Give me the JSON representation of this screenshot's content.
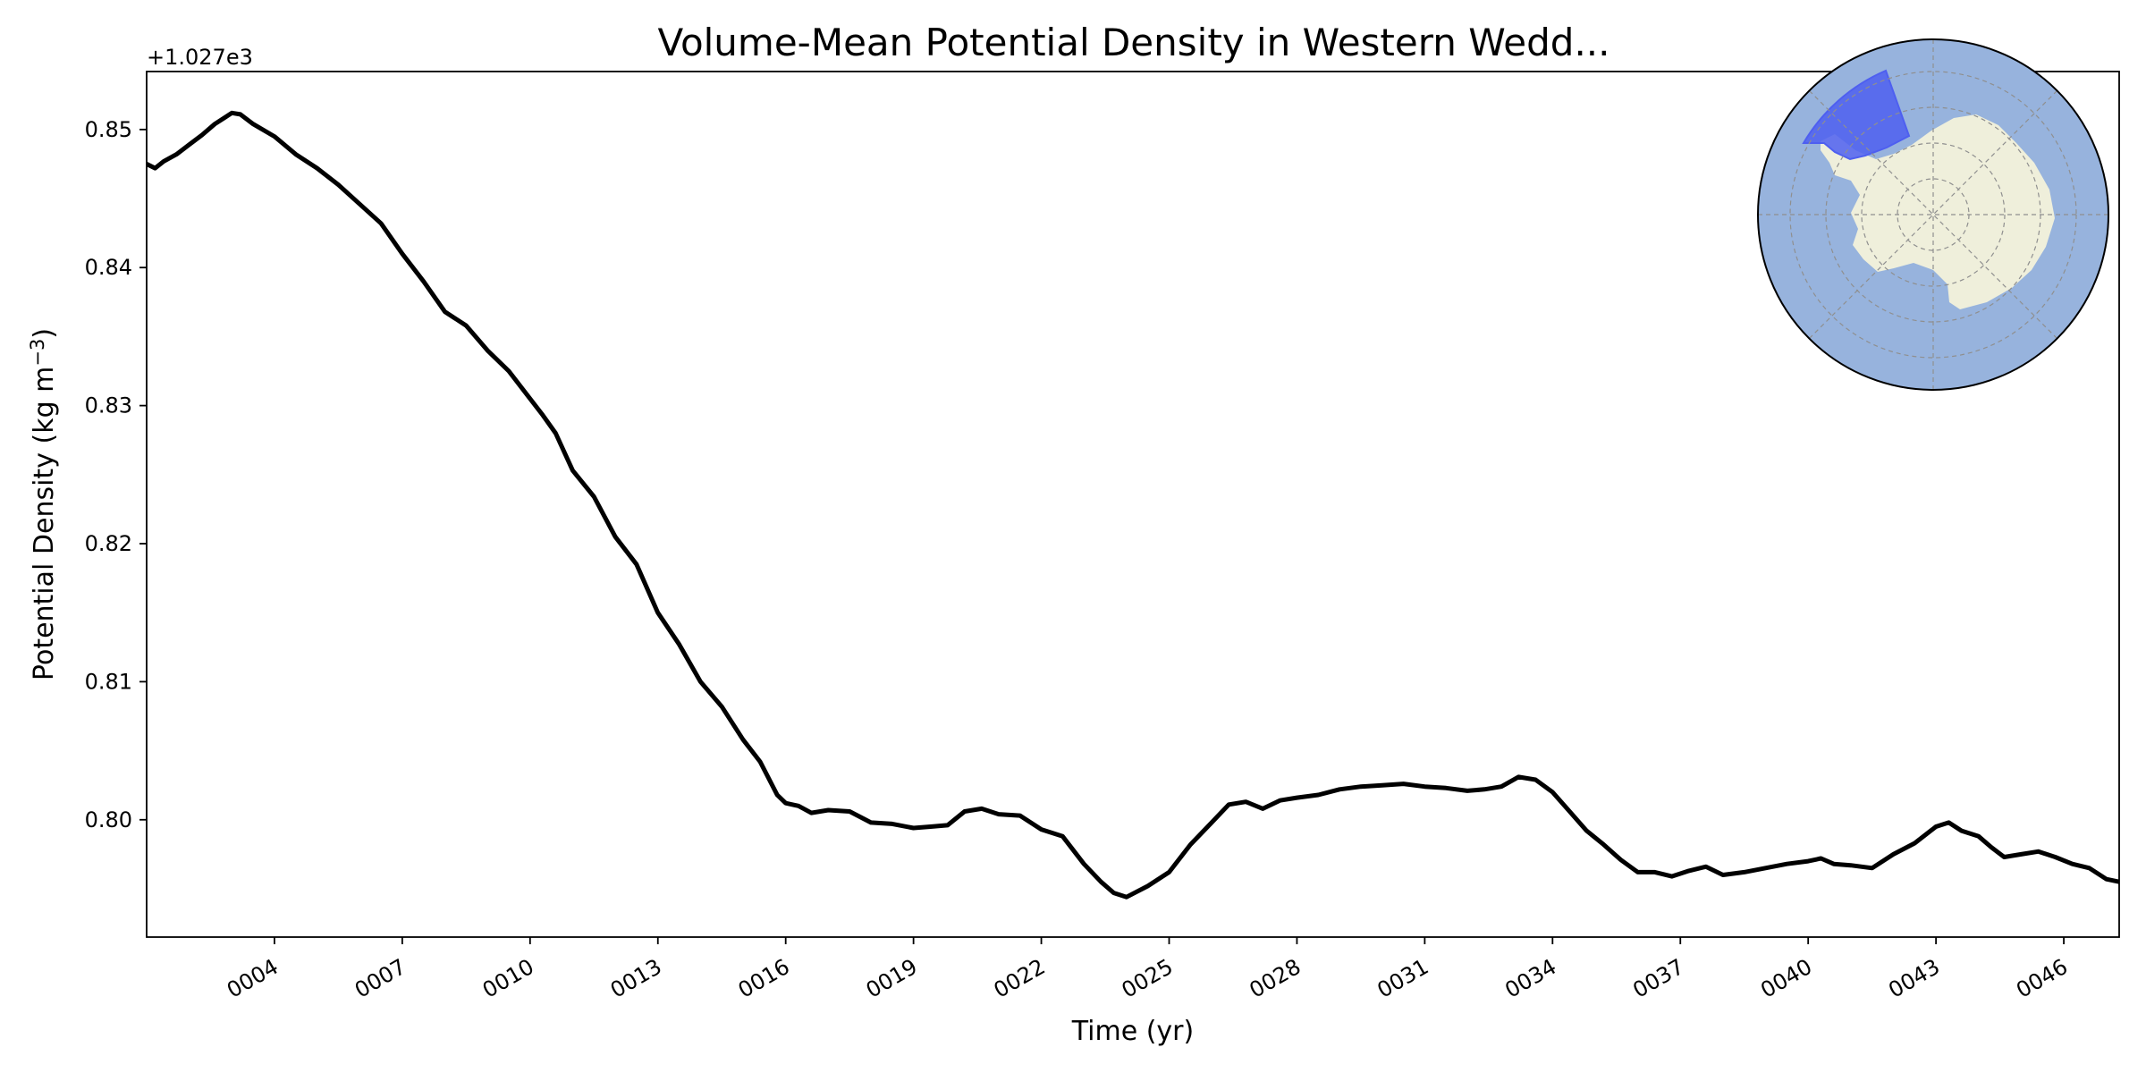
{
  "chart_data": {
    "type": "line",
    "title": "Volume-Mean Potential Density in Western Wedd...",
    "xlabel": "Time (yr)",
    "ylabel": "Potential Density (kg m",
    "ylabel_superscript": "−3",
    "ylabel_close": ")",
    "offset_text": "+1.027e3",
    "offset": 1027,
    "xlim": [
      1.0,
      47.3
    ],
    "ylim": [
      0.7915,
      0.8542
    ],
    "x_ticks": [
      4,
      7,
      10,
      13,
      16,
      19,
      22,
      25,
      28,
      31,
      34,
      37,
      40,
      43,
      46
    ],
    "x_tick_labels": [
      "0004",
      "0007",
      "0010",
      "0013",
      "0016",
      "0019",
      "0022",
      "0025",
      "0028",
      "0031",
      "0034",
      "0037",
      "0040",
      "0043",
      "0046"
    ],
    "y_ticks": [
      0.8,
      0.81,
      0.82,
      0.83,
      0.84,
      0.85
    ],
    "y_tick_labels": [
      "0.80",
      "0.81",
      "0.82",
      "0.83",
      "0.84",
      "0.85"
    ],
    "grid": false,
    "line_color": "#000000",
    "series": [
      {
        "x": [
          1.0,
          1.2,
          1.4,
          1.7,
          2.0,
          2.3,
          2.6,
          2.8,
          3.0,
          3.2,
          3.5,
          4.0,
          4.5,
          5.0,
          5.5,
          6.0,
          6.5,
          7.0,
          7.5,
          8.0,
          8.5,
          9.0,
          9.5,
          10.0,
          10.3,
          10.6,
          11.0,
          11.5,
          12.0,
          12.5,
          13.0,
          13.5,
          14.0,
          14.5,
          15.0,
          15.4,
          15.8,
          16.0,
          16.3,
          16.6,
          17.0,
          17.5,
          18.0,
          18.5,
          19.0,
          19.4,
          19.8,
          20.2,
          20.6,
          21.0,
          21.5,
          22.0,
          22.5,
          23.0,
          23.4,
          23.7,
          24.0,
          24.5,
          25.0,
          25.5,
          26.0,
          26.4,
          26.8,
          27.2,
          27.6,
          28.0,
          28.5,
          29.0,
          29.5,
          30.0,
          30.5,
          31.0,
          31.5,
          32.0,
          32.4,
          32.8,
          33.2,
          33.6,
          34.0,
          34.4,
          34.8,
          35.2,
          35.6,
          36.0,
          36.4,
          36.8,
          37.2,
          37.6,
          38.0,
          38.5,
          39.0,
          39.5,
          40.0,
          40.3,
          40.6,
          41.0,
          41.5,
          42.0,
          42.5,
          43.0,
          43.3,
          43.6,
          44.0,
          44.3,
          44.6,
          45.0,
          45.4,
          45.8,
          46.2,
          46.6,
          47.0,
          47.3
        ],
        "y": [
          0.8475,
          0.8472,
          0.8477,
          0.8482,
          0.8489,
          0.8496,
          0.8504,
          0.8508,
          0.8512,
          0.8511,
          0.8504,
          0.8495,
          0.8482,
          0.8472,
          0.846,
          0.8446,
          0.8432,
          0.841,
          0.839,
          0.8368,
          0.8358,
          0.834,
          0.8325,
          0.8305,
          0.8293,
          0.828,
          0.8253,
          0.8234,
          0.8205,
          0.8185,
          0.815,
          0.8127,
          0.81,
          0.8082,
          0.8058,
          0.8042,
          0.8018,
          0.8012,
          0.801,
          0.8005,
          0.8007,
          0.8006,
          0.7998,
          0.7997,
          0.7994,
          0.7995,
          0.7996,
          0.8006,
          0.8008,
          0.8004,
          0.8003,
          0.7993,
          0.7988,
          0.7968,
          0.7955,
          0.7947,
          0.7944,
          0.7952,
          0.7962,
          0.7982,
          0.7998,
          0.8011,
          0.8013,
          0.8008,
          0.8014,
          0.8016,
          0.8018,
          0.8022,
          0.8024,
          0.8025,
          0.8026,
          0.8024,
          0.8023,
          0.8021,
          0.8022,
          0.8024,
          0.8031,
          0.8029,
          0.802,
          0.8006,
          0.7992,
          0.7982,
          0.7971,
          0.7962,
          0.7962,
          0.7959,
          0.7963,
          0.7966,
          0.796,
          0.7962,
          0.7965,
          0.7968,
          0.797,
          0.7972,
          0.7968,
          0.7967,
          0.7965,
          0.7975,
          0.7983,
          0.7995,
          0.7998,
          0.7992,
          0.7988,
          0.798,
          0.7973,
          0.7975,
          0.7977,
          0.7973,
          0.7968,
          0.7965,
          0.7957,
          0.7955
        ]
      }
    ]
  },
  "inset_map": {
    "ocean_color": "#97b3dd",
    "land_color": "#efefdb",
    "region_color": "#4e5ff0",
    "grid_color": "#8f8f8f"
  }
}
